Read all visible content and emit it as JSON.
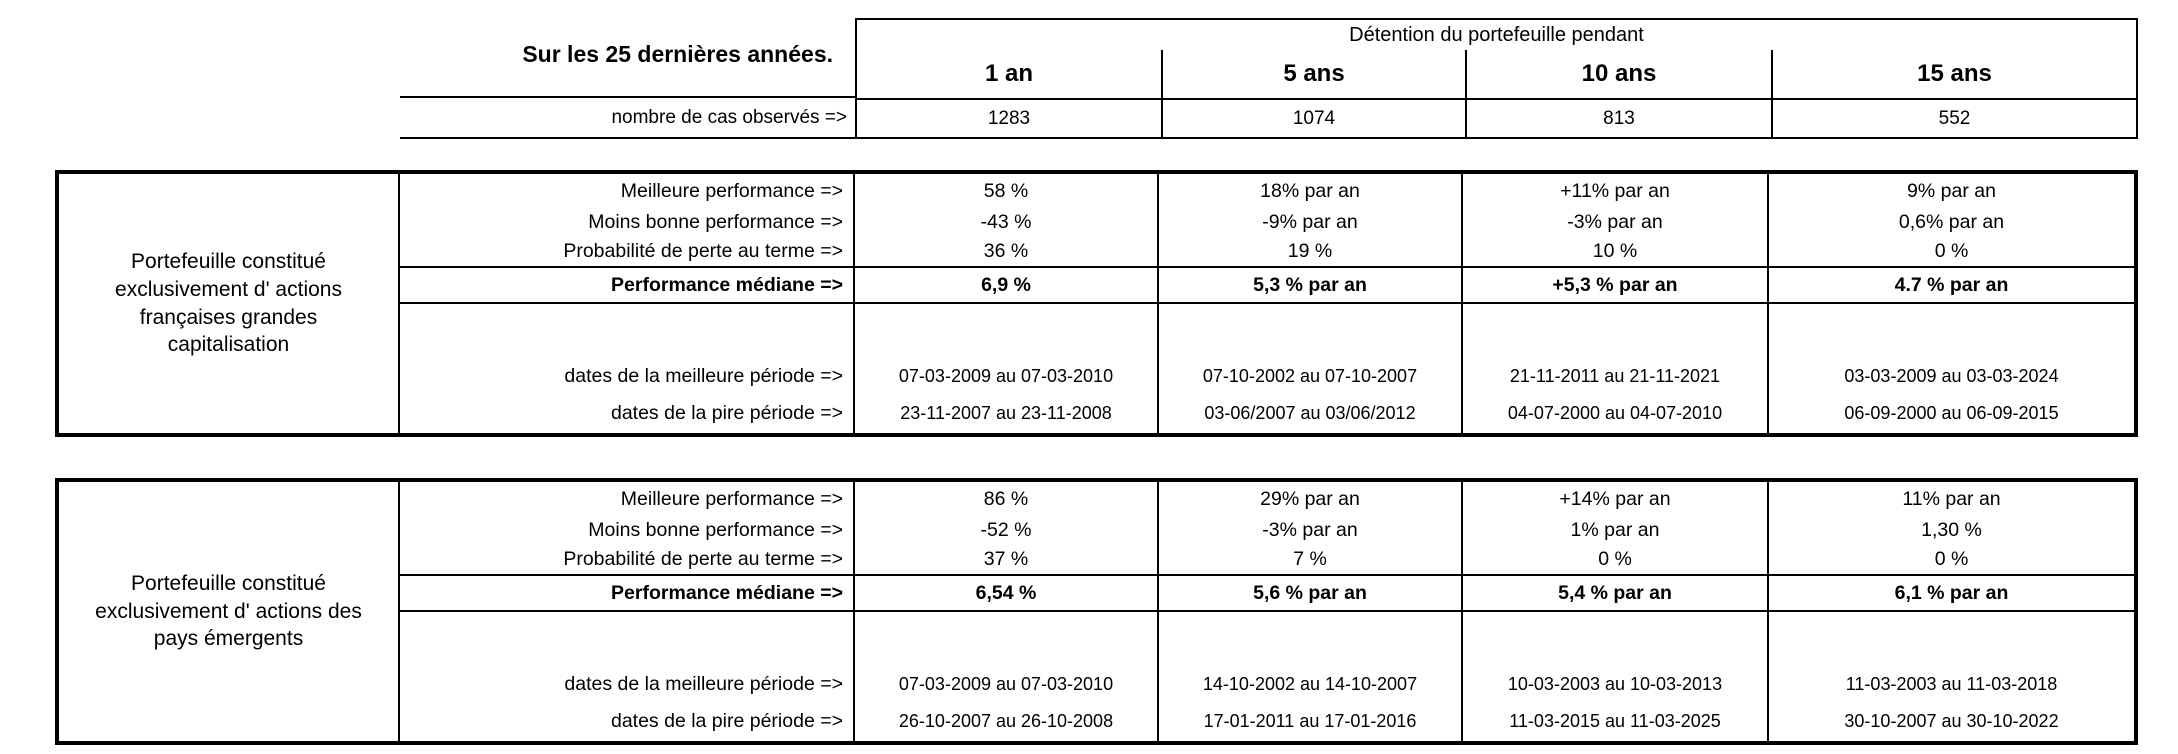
{
  "header": {
    "period_label": "Sur les 25 dernières années.",
    "holding_title": "Détention du portefeuille pendant",
    "columns": [
      "1 an",
      "5 ans",
      "10 ans",
      "15 ans"
    ],
    "cases_label": "nombre de cas observés =>",
    "cases_values": [
      "1283",
      "1074",
      "813",
      "552"
    ]
  },
  "row_labels": {
    "best": "Meilleure performance =>",
    "worst": "Moins bonne performance =>",
    "loss_probability": "Probabilité de perte au terme =>",
    "median": "Performance médiane =>",
    "best_dates": "dates de la meilleure période =>",
    "worst_dates": "dates de la pire période =>"
  },
  "portfolios": [
    {
      "name": "Portefeuille constitué\nexclusivement d' actions\nfrançaises grandes\ncapitalisation",
      "best": [
        "58 %",
        "18% par an",
        "+11% par an",
        "9% par an"
      ],
      "worst": [
        "-43 %",
        "-9% par an",
        "-3% par an",
        "0,6% par an"
      ],
      "loss_probability": [
        "36 %",
        "19 %",
        "10 %",
        "0 %"
      ],
      "median": [
        "6,9 %",
        "5,3 % par an",
        "+5,3 % par an",
        "4.7 % par an"
      ],
      "best_dates": [
        "07-03-2009 au 07-03-2010",
        "07-10-2002 au 07-10-2007",
        "21-11-2011 au 21-11-2021",
        "03-03-2009 au 03-03-2024"
      ],
      "worst_dates": [
        "23-11-2007 au 23-11-2008",
        "03-06/2007 au 03/06/2012",
        "04-07-2000 au 04-07-2010",
        "06-09-2000 au 06-09-2015"
      ]
    },
    {
      "name": "Portefeuille constitué\nexclusivement d' actions des\npays émergents",
      "best": [
        "86 %",
        "29% par an",
        "+14% par an",
        "11% par an"
      ],
      "worst": [
        "-52 %",
        "-3% par an",
        "1% par an",
        "1,30 %"
      ],
      "loss_probability": [
        "37 %",
        "7 %",
        "0 %",
        "0 %"
      ],
      "median": [
        "6,54 %",
        "5,6 % par an",
        "5,4 % par an",
        "6,1 % par an"
      ],
      "best_dates": [
        "07-03-2009 au 07-03-2010",
        "14-10-2002 au 14-10-2007",
        "10-03-2003 au 10-03-2013",
        "11-03-2003 au 11-03-2018"
      ],
      "worst_dates": [
        "26-10-2007 au 26-10-2008",
        "17-01-2011 au 17-01-2016",
        "11-03-2015 au 11-03-2025",
        "30-10-2007 au 30-10-2022"
      ]
    }
  ]
}
